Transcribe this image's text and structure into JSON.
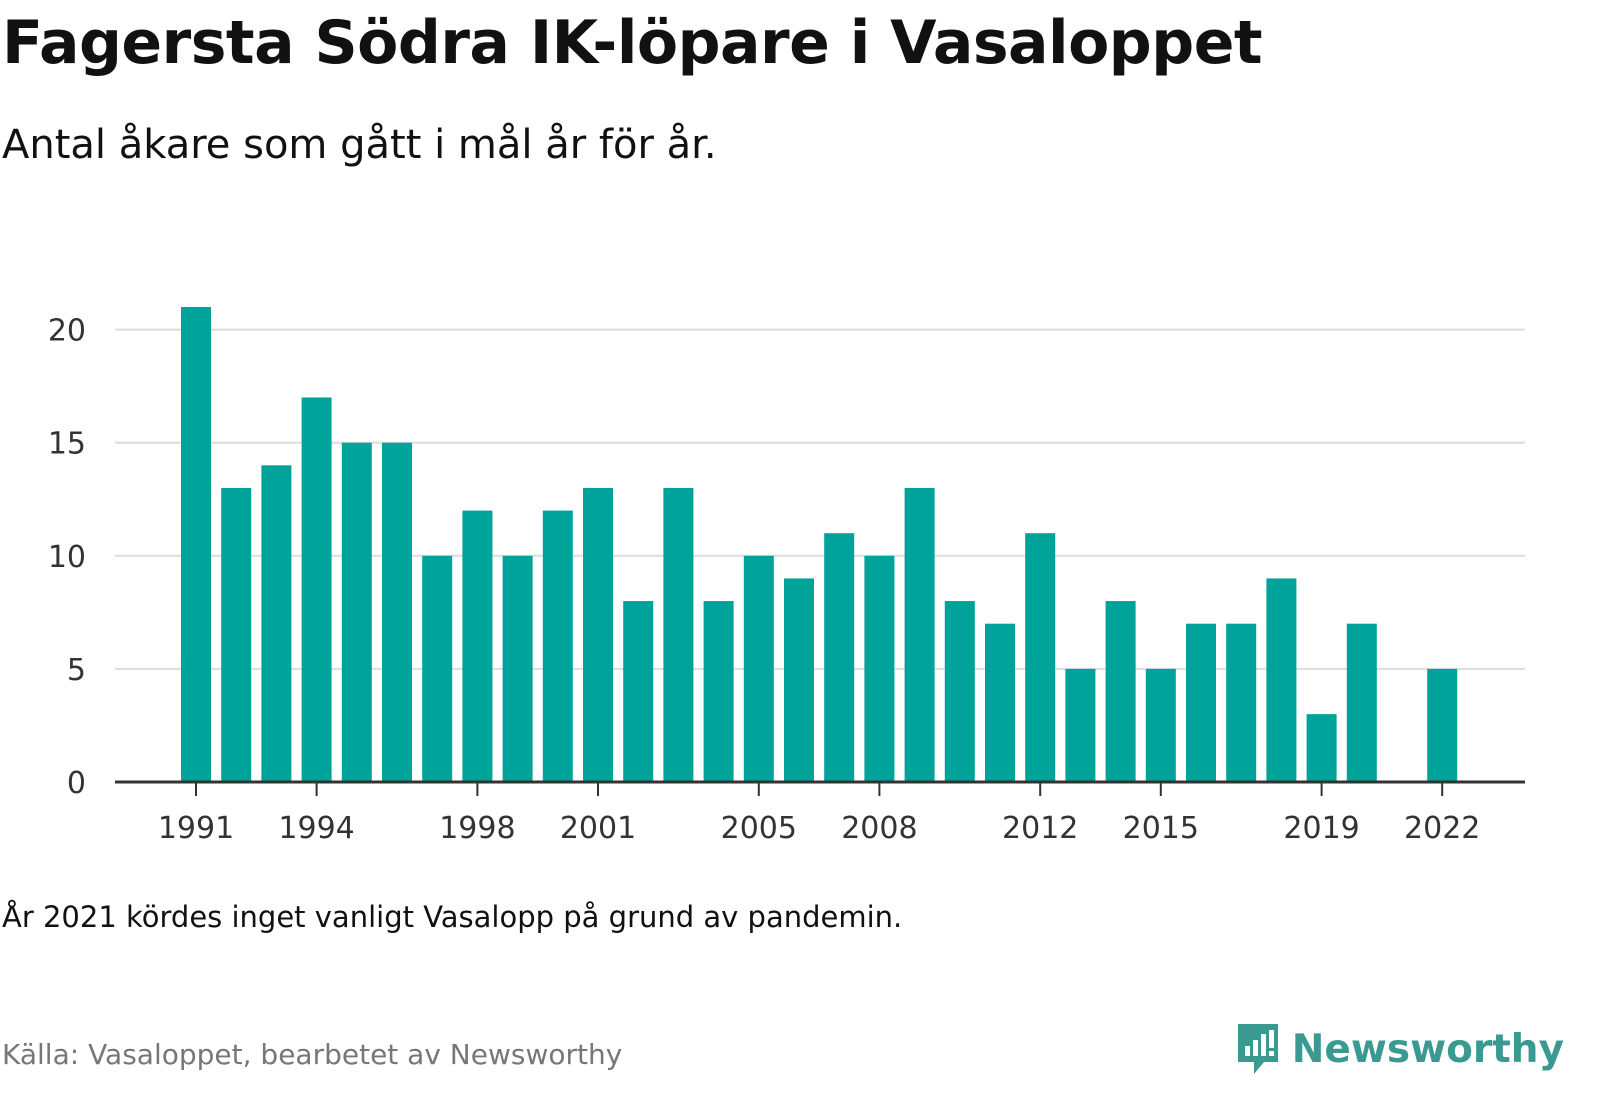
{
  "header": {
    "title": "Fagersta Södra IK-löpare i Vasaloppet",
    "subtitle": "Antal åkare som gått i mål år för år."
  },
  "footer": {
    "note": "År 2021 kördes inget vanligt Vasalopp på grund av pandemin.",
    "source": "Källa: Vasaloppet, bearbetet av Newsworthy",
    "brand": "Newsworthy",
    "brand_icon": "newsworthy-logo-icon"
  },
  "colors": {
    "bar": "#00a39a",
    "grid": "#dddddd",
    "axis": "#333333",
    "brand": "#3a9a92"
  },
  "chart_data": {
    "type": "bar",
    "title": "Fagersta Södra IK-löpare i Vasaloppet",
    "subtitle": "Antal åkare som gått i mål år för år.",
    "xlabel": "",
    "ylabel": "",
    "categories": [
      1991,
      1992,
      1993,
      1994,
      1995,
      1996,
      1997,
      1998,
      1999,
      2000,
      2001,
      2002,
      2003,
      2004,
      2005,
      2006,
      2007,
      2008,
      2009,
      2010,
      2011,
      2012,
      2013,
      2014,
      2015,
      2016,
      2017,
      2018,
      2019,
      2020,
      2021,
      2022
    ],
    "values": [
      21,
      13,
      14,
      17,
      15,
      15,
      10,
      12,
      10,
      12,
      13,
      8,
      13,
      8,
      10,
      9,
      11,
      10,
      13,
      8,
      7,
      11,
      5,
      8,
      5,
      7,
      7,
      9,
      3,
      7,
      null,
      5
    ],
    "x_tick_labels": [
      "1991",
      "1994",
      "1998",
      "2001",
      "2005",
      "2008",
      "2012",
      "2015",
      "2019",
      "2022"
    ],
    "y_ticks": [
      0,
      5,
      10,
      15,
      20
    ],
    "ylim": [
      0,
      21
    ],
    "grid": true,
    "legend": "none"
  }
}
